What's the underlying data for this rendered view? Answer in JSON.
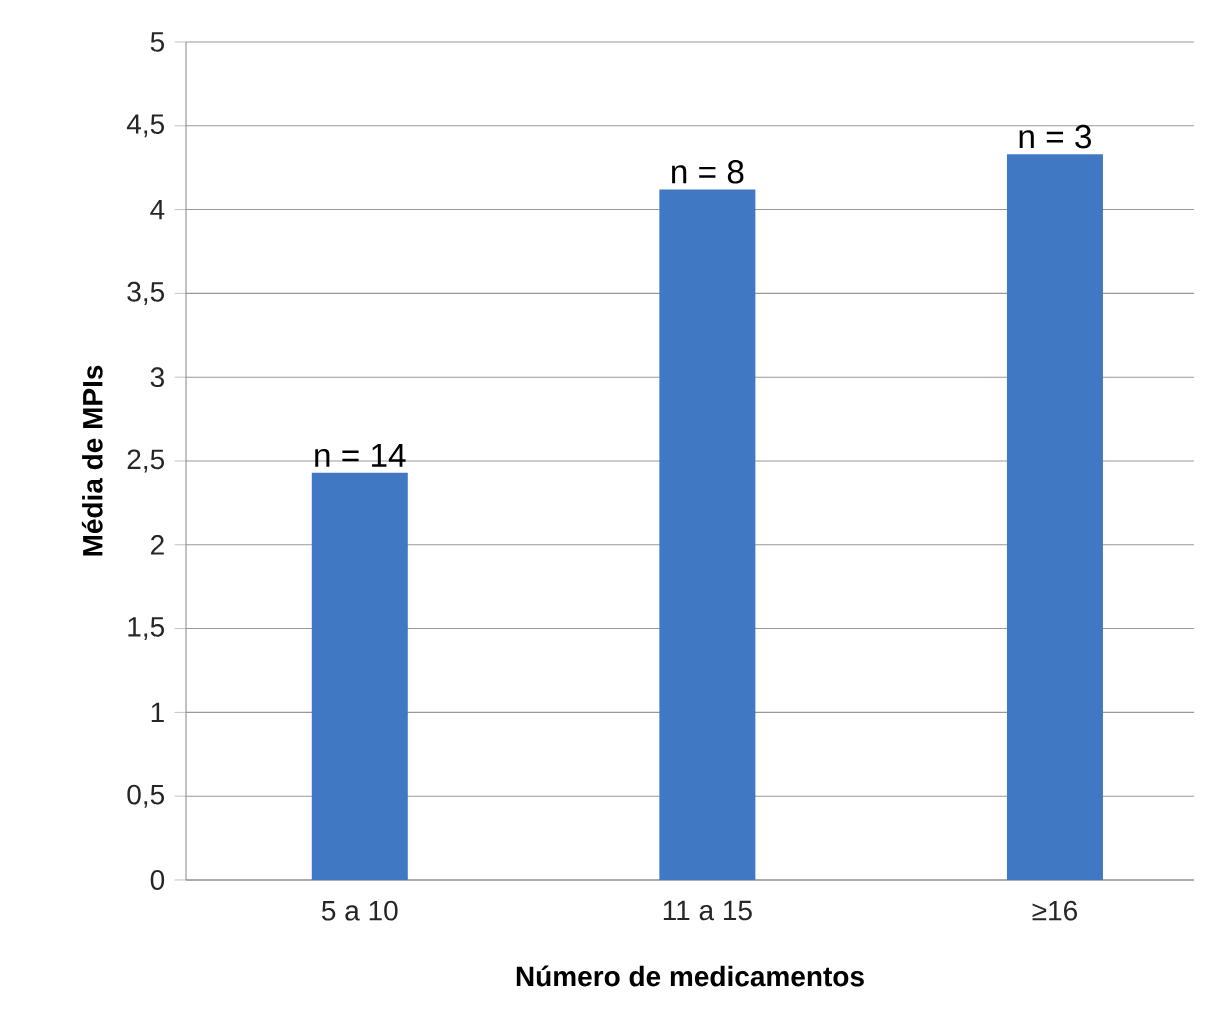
{
  "chart_data": {
    "type": "bar",
    "xlabel": "Número de medicamentos",
    "ylabel": "Média de MPIs",
    "categories": [
      "5 a 10",
      "11 a 15",
      "≥16"
    ],
    "values": [
      2.43,
      4.12,
      4.33
    ],
    "color": "#4178c4",
    "annotations": [
      {
        "text": "n = 14",
        "x": "5 a 10",
        "y": 2.43
      },
      {
        "text": "n = 8",
        "x": "11 a 15",
        "y": 4.12
      },
      {
        "text": "n = 3",
        "x": "≥16",
        "y": 4.33
      }
    ],
    "ylim": [
      0,
      5
    ],
    "yticks": [
      0,
      {
        "value": 0.5,
        "label": "0,5"
      },
      1,
      {
        "value": 1.5,
        "label": "1,5"
      },
      2,
      {
        "value": 2.5,
        "label": "2,5"
      },
      3,
      {
        "value": 3.5,
        "label": "3,5"
      },
      4,
      {
        "value": 4.5,
        "label": "4,5"
      },
      5
    ],
    "grid": "y"
  }
}
